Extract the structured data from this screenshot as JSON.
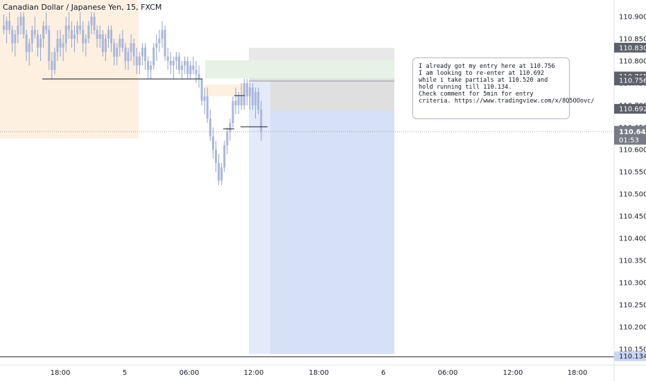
{
  "title": "Canadian Dollar / Japanese Yen, 15, FXCM",
  "note": {
    "lines": [
      "I already got my entry here at 110.756",
      "I am looking to re-enter at 110.692",
      "while i take partials at 110.520 and",
      "hold running till 110.134.",
      "",
      "Check comment for 5min for entry",
      "criteria. https://www.tradingview.com/x/8Q5OOovc/"
    ]
  },
  "chart_data": {
    "type": "candlestick",
    "symbol": "CADJPY",
    "timeframe": "15",
    "source": "FXCM",
    "y_ticks": [
      "110.900",
      "110.850",
      "110.800",
      "110.750",
      "110.700",
      "110.650",
      "110.600",
      "110.550",
      "110.500",
      "110.450",
      "110.400",
      "110.350",
      "110.300",
      "110.250",
      "110.200",
      "110.150"
    ],
    "x_ticks": [
      "18:00",
      "5",
      "06:00",
      "12:00",
      "18:00",
      "6",
      "06:00",
      "12:00",
      "18:00"
    ],
    "price_labels": [
      {
        "value": "110.830",
        "kind": "level"
      },
      {
        "value": "110.765",
        "kind": "level"
      },
      {
        "value": "110.756",
        "kind": "level"
      },
      {
        "value": "110.692",
        "kind": "level"
      },
      {
        "value": "110.641",
        "kind": "current",
        "countdown": "01:53"
      },
      {
        "value": "110.134",
        "kind": "level"
      }
    ],
    "current_price": 110.641,
    "levels": {
      "entry": 110.756,
      "reentry": 110.692,
      "partials": 110.52,
      "target": 110.134,
      "upper_zone_top": 110.83,
      "green_zone_top": 110.8,
      "green_zone_bottom": 110.765
    },
    "colors": {
      "candle": "#aab6da",
      "candle_dark": "#8ea0cf",
      "demand_zone": "#fdf0e1",
      "green_zone": "#e8f3e8",
      "grey_zone": "#e6e6e6",
      "blue_zone": "#d6e0f6",
      "accent": "#5d606b"
    },
    "candles": [
      [
        110.88,
        110.905,
        110.86,
        110.87
      ],
      [
        110.87,
        110.9,
        110.84,
        110.89
      ],
      [
        110.89,
        110.91,
        110.86,
        110.87
      ],
      [
        110.87,
        110.88,
        110.82,
        110.84
      ],
      [
        110.84,
        110.87,
        110.81,
        110.86
      ],
      [
        110.86,
        110.9,
        110.84,
        110.88
      ],
      [
        110.88,
        110.91,
        110.86,
        110.9
      ],
      [
        110.9,
        110.91,
        110.85,
        110.86
      ],
      [
        110.86,
        110.87,
        110.8,
        110.82
      ],
      [
        110.82,
        110.85,
        110.79,
        110.84
      ],
      [
        110.84,
        110.88,
        110.82,
        110.87
      ],
      [
        110.87,
        110.9,
        110.85,
        110.86
      ],
      [
        110.86,
        110.87,
        110.81,
        110.83
      ],
      [
        110.83,
        110.86,
        110.8,
        110.85
      ],
      [
        110.85,
        110.89,
        110.83,
        110.88
      ],
      [
        110.88,
        110.91,
        110.86,
        110.87
      ],
      [
        110.87,
        110.88,
        110.78,
        110.8
      ],
      [
        110.8,
        110.82,
        110.76,
        110.78
      ],
      [
        110.78,
        110.83,
        110.77,
        110.82
      ],
      [
        110.82,
        110.87,
        110.8,
        110.85
      ],
      [
        110.85,
        110.87,
        110.81,
        110.83
      ],
      [
        110.83,
        110.86,
        110.8,
        110.84
      ],
      [
        110.84,
        110.9,
        110.82,
        110.88
      ],
      [
        110.88,
        110.91,
        110.85,
        110.87
      ],
      [
        110.87,
        110.89,
        110.83,
        110.85
      ],
      [
        110.85,
        110.88,
        110.82,
        110.86
      ],
      [
        110.86,
        110.89,
        110.84,
        110.88
      ],
      [
        110.88,
        110.91,
        110.86,
        110.87
      ],
      [
        110.87,
        110.89,
        110.82,
        110.84
      ],
      [
        110.84,
        110.86,
        110.81,
        110.85
      ],
      [
        110.85,
        110.89,
        110.84,
        110.88
      ],
      [
        110.88,
        110.91,
        110.86,
        110.9
      ],
      [
        110.9,
        110.91,
        110.86,
        110.87
      ],
      [
        110.87,
        110.88,
        110.83,
        110.85
      ],
      [
        110.85,
        110.88,
        110.83,
        110.86
      ],
      [
        110.86,
        110.87,
        110.81,
        110.82
      ],
      [
        110.82,
        110.86,
        110.8,
        110.85
      ],
      [
        110.85,
        110.88,
        110.83,
        110.87
      ],
      [
        110.87,
        110.88,
        110.82,
        110.84
      ],
      [
        110.84,
        110.85,
        110.79,
        110.81
      ],
      [
        110.81,
        110.84,
        110.79,
        110.83
      ],
      [
        110.83,
        110.86,
        110.81,
        110.85
      ],
      [
        110.85,
        110.87,
        110.82,
        110.83
      ],
      [
        110.83,
        110.84,
        110.78,
        110.8
      ],
      [
        110.8,
        110.83,
        110.78,
        110.82
      ],
      [
        110.82,
        110.86,
        110.8,
        110.84
      ],
      [
        110.84,
        110.85,
        110.79,
        110.81
      ],
      [
        110.81,
        110.83,
        110.77,
        110.79
      ],
      [
        110.79,
        110.82,
        110.77,
        110.81
      ],
      [
        110.81,
        110.84,
        110.79,
        110.83
      ],
      [
        110.83,
        110.84,
        110.78,
        110.8
      ],
      [
        110.8,
        110.81,
        110.76,
        110.78
      ],
      [
        110.78,
        110.8,
        110.76,
        110.79
      ],
      [
        110.79,
        110.84,
        110.78,
        110.83
      ],
      [
        110.83,
        110.86,
        110.8,
        110.84
      ],
      [
        110.84,
        110.87,
        110.82,
        110.85
      ],
      [
        110.85,
        110.89,
        110.83,
        110.87
      ],
      [
        110.87,
        110.88,
        110.8,
        110.81
      ],
      [
        110.81,
        110.83,
        110.78,
        110.8
      ],
      [
        110.8,
        110.82,
        110.77,
        110.79
      ],
      [
        110.79,
        110.81,
        110.76,
        110.8
      ],
      [
        110.8,
        110.82,
        110.78,
        110.81
      ],
      [
        110.81,
        110.82,
        110.77,
        110.78
      ],
      [
        110.78,
        110.8,
        110.76,
        110.79
      ],
      [
        110.79,
        110.81,
        110.77,
        110.8
      ],
      [
        110.8,
        110.81,
        110.76,
        110.77
      ],
      [
        110.77,
        110.8,
        110.76,
        110.79
      ],
      [
        110.79,
        110.81,
        110.77,
        110.78
      ],
      [
        110.78,
        110.8,
        110.75,
        110.77
      ],
      [
        110.77,
        110.79,
        110.74,
        110.76
      ],
      [
        110.76,
        110.76,
        110.7,
        110.71
      ],
      [
        110.71,
        110.74,
        110.68,
        110.72
      ],
      [
        110.72,
        110.74,
        110.66,
        110.67
      ],
      [
        110.67,
        110.69,
        110.62,
        110.63
      ],
      [
        110.63,
        110.65,
        110.58,
        110.6
      ],
      [
        110.6,
        110.62,
        110.55,
        110.57
      ],
      [
        110.57,
        110.59,
        110.52,
        110.53
      ],
      [
        110.53,
        110.57,
        110.52,
        110.56
      ],
      [
        110.56,
        110.62,
        110.55,
        110.61
      ],
      [
        110.61,
        110.65,
        110.59,
        110.64
      ],
      [
        110.64,
        110.67,
        110.62,
        110.66
      ],
      [
        110.66,
        110.72,
        110.65,
        110.71
      ],
      [
        110.71,
        110.74,
        110.68,
        110.7
      ],
      [
        110.7,
        110.73,
        110.68,
        110.72
      ],
      [
        110.72,
        110.75,
        110.69,
        110.7
      ],
      [
        110.7,
        110.76,
        110.69,
        110.75
      ],
      [
        110.75,
        110.76,
        110.7,
        110.72
      ],
      [
        110.72,
        110.75,
        110.69,
        110.74
      ],
      [
        110.74,
        110.75,
        110.69,
        110.7
      ],
      [
        110.7,
        110.74,
        110.67,
        110.73
      ],
      [
        110.73,
        110.74,
        110.68,
        110.69
      ],
      [
        110.69,
        110.71,
        110.62,
        110.641
      ]
    ]
  }
}
